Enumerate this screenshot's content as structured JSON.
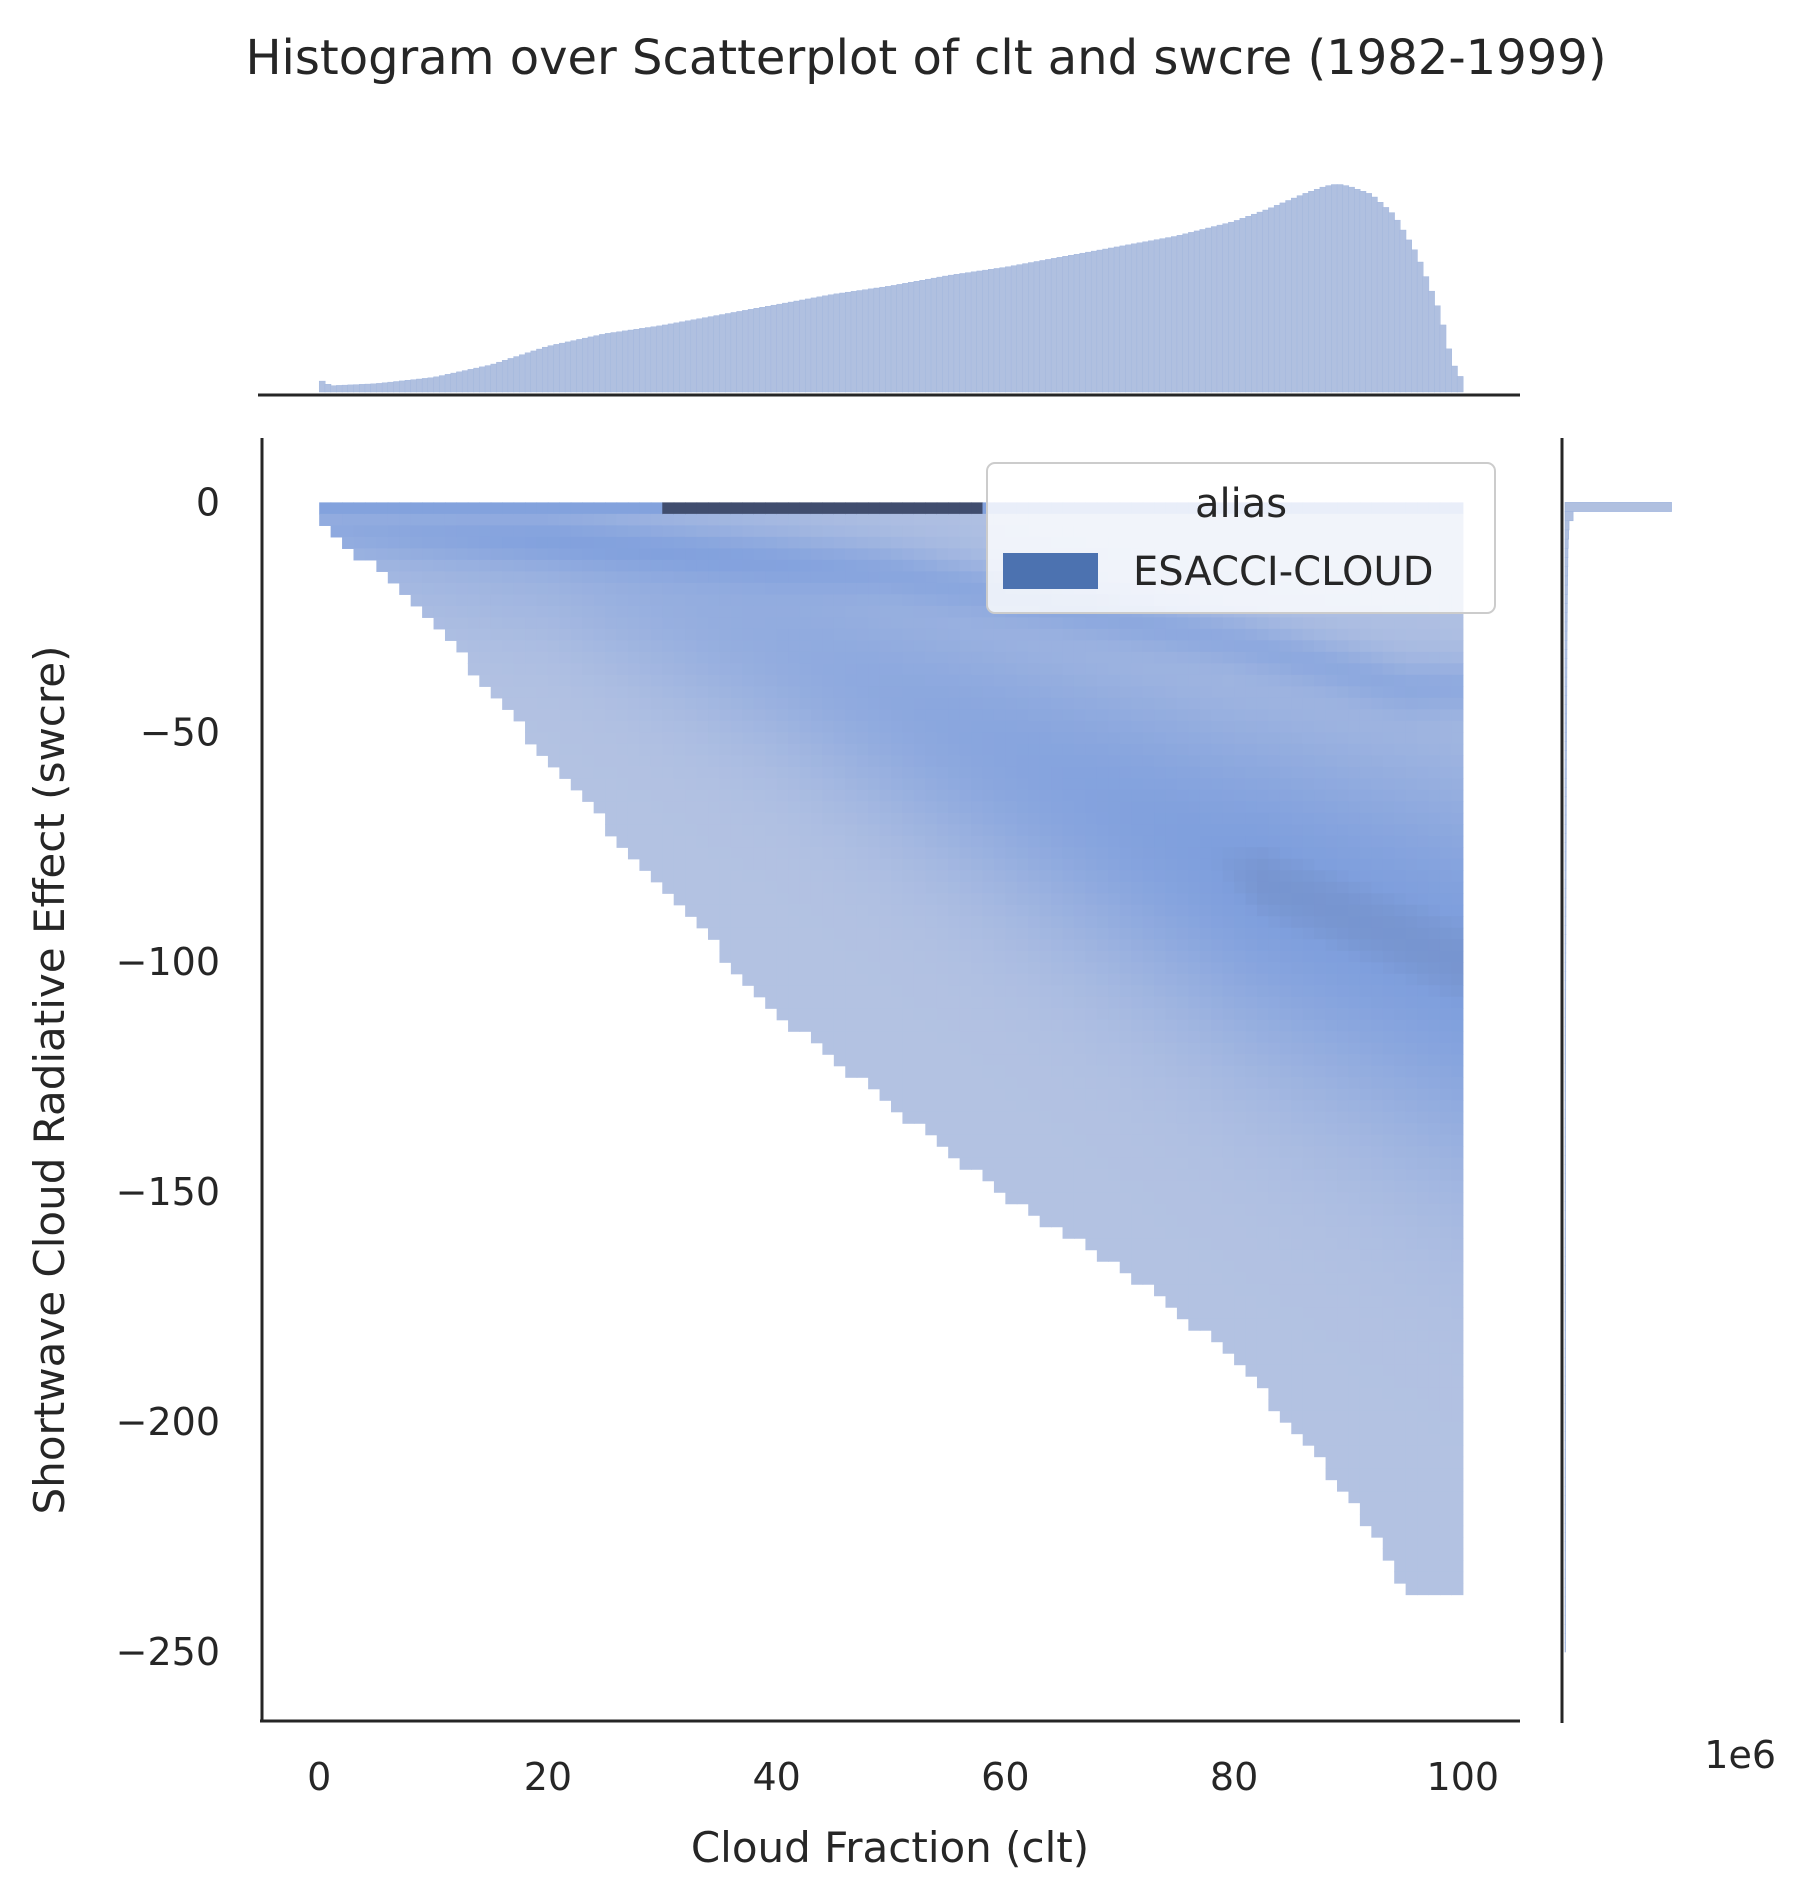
{
  "chart_data": {
    "type": "heatmap",
    "title": "Histogram over Scatterplot of clt and swcre (1982-1999)",
    "xlabel": "Cloud Fraction (clt)",
    "ylabel": "Shortwave Cloud Radiative Effect (swcre)",
    "xlim": [
      -5,
      105
    ],
    "ylim": [
      -265,
      14
    ],
    "x_ticks": [
      "0",
      "20",
      "40",
      "60",
      "80",
      "100"
    ],
    "x_tick_values": [
      0,
      20,
      40,
      60,
      80,
      100
    ],
    "y_ticks": [
      "0",
      "−50",
      "−100",
      "−150",
      "−200",
      "−250"
    ],
    "y_tick_values": [
      0,
      -50,
      -100,
      -150,
      -200,
      -250
    ],
    "marginal_offset_label": "1e6",
    "legend": {
      "title": "alias",
      "entries": [
        {
          "label": "ESACCI-CLOUD",
          "color": "#4c72b0"
        }
      ]
    },
    "colors": {
      "hist_fill": "#b0c0e0",
      "hist_edge": "#9fb4dd",
      "low_density": "#b9c6e3",
      "mid_density": "#7f9fdd",
      "high_density": "#404d6e"
    },
    "grid": false,
    "legend_placement": "top-right",
    "top_marginal_histogram": {
      "description_axis": "clt",
      "x": [
        0,
        1,
        5,
        10,
        15,
        20,
        25,
        30,
        35,
        40,
        45,
        50,
        55,
        60,
        65,
        70,
        75,
        80,
        83,
        86,
        88,
        89,
        90,
        92,
        94,
        96,
        98,
        99,
        100
      ],
      "relative_height": [
        0.06,
        0.03,
        0.04,
        0.07,
        0.13,
        0.22,
        0.28,
        0.32,
        0.37,
        0.42,
        0.47,
        0.51,
        0.56,
        0.6,
        0.65,
        0.7,
        0.75,
        0.82,
        0.88,
        0.95,
        0.99,
        1.0,
        0.99,
        0.95,
        0.85,
        0.66,
        0.38,
        0.15,
        0.05
      ]
    },
    "right_marginal_histogram": {
      "description_axis": "swcre",
      "y": [
        0,
        -2,
        -5,
        -10,
        -20,
        -30,
        -50,
        -75,
        -100,
        -150,
        -200,
        -250
      ],
      "relative_width": [
        1.0,
        0.05,
        0.02,
        0.015,
        0.012,
        0.01,
        0.008,
        0.006,
        0.004,
        0.002,
        0.001,
        0.0005
      ]
    },
    "joint_density": {
      "x_range": [
        0,
        100
      ],
      "y_range": [
        -250,
        0
      ],
      "lower_envelope": {
        "x": [
          0,
          10,
          20,
          40,
          60,
          70,
          80,
          90,
          95,
          100
        ],
        "y": [
          -2,
          -25,
          -55,
          -110,
          -150,
          -165,
          -185,
          -215,
          -235,
          -237
        ]
      },
      "ridge_main": {
        "x": [
          20,
          40,
          60,
          80,
          100
        ],
        "y": [
          -12,
          -30,
          -55,
          -80,
          -100
        ]
      },
      "ridge_secondary": {
        "x": [
          0,
          20,
          50,
          80,
          95
        ],
        "y": [
          -5,
          -8,
          -15,
          -30,
          -40
        ]
      },
      "top_band_peak_x": [
        30,
        58
      ]
    }
  }
}
